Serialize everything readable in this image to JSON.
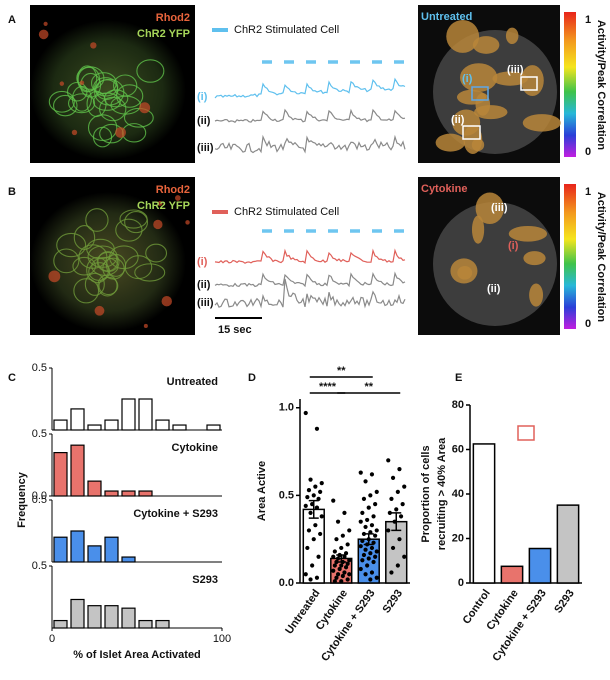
{
  "panels": [
    {
      "label": "A",
      "image_labels": [
        "Rhod2",
        "ChR2 YFP"
      ],
      "legend": "ChR2 Stimulated Cell",
      "color": "#5fc0ee",
      "trace_labels": [
        "(i)",
        "(ii)",
        "(iii)"
      ],
      "map_title": "Untreated",
      "roi_labels": [
        "(i)",
        "(iii)",
        "(ii)"
      ],
      "colorbar": {
        "title": "Activity/Peak Correlation",
        "range": [
          0,
          1
        ]
      }
    },
    {
      "label": "B",
      "image_labels": [
        "Rhod2",
        "ChR2 YFP"
      ],
      "legend": "ChR2 Stimulated Cell",
      "color": "#e0605a",
      "trace_labels": [
        "(i)",
        "(ii)",
        "(iii)"
      ],
      "scale_bar": "15 sec",
      "map_title": "Cytokine",
      "roi_labels": [
        "(iii)",
        "(i)",
        "(ii)"
      ],
      "colorbar": {
        "title": "Activity/Peak Correlation",
        "range": [
          0,
          1
        ]
      }
    },
    {
      "label": "C"
    },
    {
      "label": "D"
    },
    {
      "label": "E"
    }
  ],
  "chart_data": [
    {
      "type": "histogram",
      "title": "Untreated",
      "color": "#ffffff",
      "bins": [
        0,
        10,
        20,
        30,
        40,
        50,
        60,
        70,
        80,
        90,
        100
      ],
      "values": [
        0.08,
        0.17,
        0.04,
        0.08,
        0.25,
        0.25,
        0.08,
        0.04,
        0,
        0.04
      ],
      "xlim": [
        0,
        100
      ],
      "ylim": [
        0,
        0.5
      ],
      "yticks": [
        0.5
      ]
    },
    {
      "type": "histogram",
      "title": "Cytokine",
      "color": "#e8736c",
      "bins": [
        0,
        10,
        20,
        30,
        40,
        50,
        60,
        70,
        80,
        90,
        100
      ],
      "values": [
        0.35,
        0.41,
        0.12,
        0.04,
        0.04,
        0.04,
        0,
        0,
        0,
        0
      ],
      "xlim": [
        0,
        100
      ],
      "ylim": [
        0,
        0.5
      ],
      "yticks": [
        {
          "value": 0,
          "label": "0.0"
        },
        0.5
      ]
    },
    {
      "type": "histogram",
      "title": "Cytokine + S293",
      "color": "#4a8fea",
      "bins": [
        0,
        10,
        20,
        30,
        40,
        50,
        60,
        70,
        80,
        90,
        100
      ],
      "values": [
        0.2,
        0.25,
        0.13,
        0.2,
        0.04,
        0,
        0,
        0,
        0,
        0
      ],
      "xlim": [
        0,
        100
      ],
      "ylim": [
        0,
        0.5
      ],
      "yticks": [
        0.5
      ]
    },
    {
      "type": "histogram",
      "title": "S293",
      "color": "#c4c4c4",
      "bins": [
        0,
        10,
        20,
        30,
        40,
        50,
        60,
        70,
        80,
        90,
        100
      ],
      "values": [
        0.06,
        0.23,
        0.18,
        0.18,
        0.16,
        0.06,
        0.06,
        0,
        0,
        0
      ],
      "xlim": [
        0,
        100
      ],
      "ylim": [
        0,
        0.5
      ],
      "yticks": [
        0.5
      ],
      "xticks": [
        0,
        100
      ],
      "xlabel": "% of Islet Area Activated",
      "ylabel": "Frequency"
    },
    {
      "type": "bar",
      "ylabel": "Area Active",
      "categories": [
        "Untreated",
        "Cytokine",
        "Cytokine + S293",
        "S293"
      ],
      "colors": [
        "#ffffff",
        "#e8736c",
        "#4a8fea",
        "#c4c4c4"
      ],
      "values": [
        0.42,
        0.14,
        0.25,
        0.35
      ],
      "errors": [
        0.05,
        0.02,
        0.03,
        0.05
      ],
      "points": [
        [
          0.97,
          0.88,
          0.59,
          0.57,
          0.55,
          0.53,
          0.52,
          0.5,
          0.49,
          0.48,
          0.45,
          0.44,
          0.43,
          0.4,
          0.38,
          0.33,
          0.3,
          0.28,
          0.25,
          0.2,
          0.15,
          0.1,
          0.05,
          0.03,
          0.02
        ],
        [
          0.47,
          0.4,
          0.35,
          0.3,
          0.27,
          0.25,
          0.22,
          0.2,
          0.18,
          0.17,
          0.16,
          0.15,
          0.15,
          0.14,
          0.13,
          0.12,
          0.12,
          0.11,
          0.1,
          0.1,
          0.09,
          0.08,
          0.07,
          0.06,
          0.05,
          0.05,
          0.04,
          0.03,
          0.02,
          0.01,
          0.01
        ],
        [
          0.63,
          0.62,
          0.58,
          0.52,
          0.5,
          0.48,
          0.45,
          0.43,
          0.4,
          0.38,
          0.36,
          0.35,
          0.33,
          0.32,
          0.3,
          0.29,
          0.28,
          0.27,
          0.25,
          0.24,
          0.23,
          0.22,
          0.21,
          0.2,
          0.19,
          0.18,
          0.17,
          0.16,
          0.15,
          0.14,
          0.13,
          0.12,
          0.1,
          0.08,
          0.06,
          0.05,
          0.03,
          0.02
        ],
        [
          0.7,
          0.65,
          0.6,
          0.55,
          0.52,
          0.48,
          0.45,
          0.42,
          0.4,
          0.38,
          0.35,
          0.3,
          0.25,
          0.2,
          0.15,
          0.1,
          0.06
        ]
      ],
      "ylim": [
        0,
        1.05
      ],
      "yticks": [
        {
          "value": 0,
          "label": "0.0"
        },
        0.5,
        {
          "value": 1,
          "label": "1.0"
        }
      ],
      "comparisons": [
        {
          "label": "****",
          "groups": [
            "Untreated",
            "Cytokine"
          ]
        },
        {
          "label": "**",
          "groups": [
            "Cytokine",
            "S293"
          ]
        },
        {
          "label": "**",
          "groups": [
            "Untreated",
            "Cytokine + S293"
          ]
        }
      ]
    },
    {
      "type": "bar",
      "ylabel": [
        "Proportion of cells",
        "recruiting > 40% Area"
      ],
      "categories": [
        "Control",
        "Cytokine",
        "Cytokine + S293",
        "S293"
      ],
      "colors": [
        "#ffffff",
        "#e8736c",
        "#4a8fea",
        "#c4c4c4"
      ],
      "values": [
        62.5,
        7.5,
        15.5,
        35
      ],
      "ylim": [
        0,
        80
      ],
      "yticks": [
        0,
        20,
        40,
        60,
        80
      ]
    }
  ]
}
